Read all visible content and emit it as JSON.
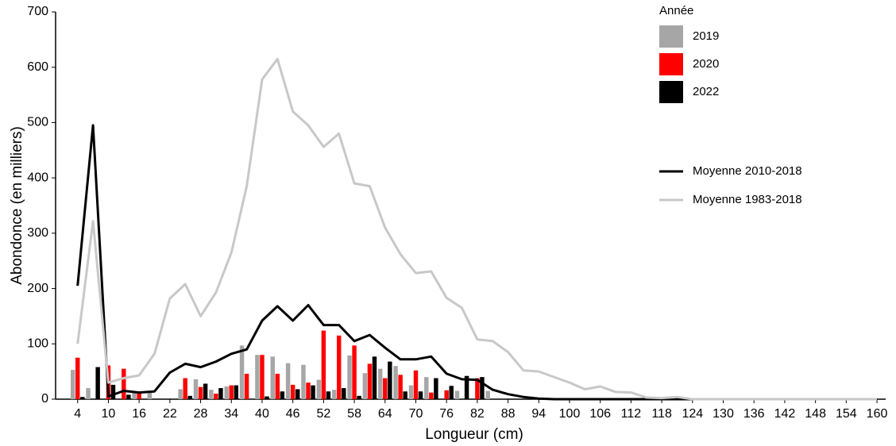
{
  "chart_data": {
    "type": "bar",
    "x_label": "Longueur (cm)",
    "y_label": "Abondonce (en milliers)",
    "legend_title": "Année",
    "x": [
      4,
      7,
      10,
      13,
      16,
      19,
      22,
      25,
      28,
      31,
      34,
      37,
      40,
      43,
      46,
      49,
      52,
      55,
      58,
      61,
      64,
      67,
      70,
      73,
      76,
      79,
      82,
      85,
      88,
      91,
      94,
      97,
      100,
      103,
      106,
      109,
      112,
      115,
      118,
      121,
      124,
      127,
      130,
      133,
      136,
      139,
      142,
      145,
      148,
      151,
      154,
      157,
      160
    ],
    "series": [
      {
        "name": "2019",
        "type": "bar",
        "color": "#a6a6a6",
        "values": [
          53,
          20,
          0,
          0,
          12,
          12,
          0,
          18,
          36,
          17,
          23,
          97,
          80,
          77,
          65,
          62,
          35,
          17,
          79,
          47,
          55,
          60,
          25,
          40,
          0,
          15,
          0,
          15,
          0,
          0,
          0,
          0,
          0,
          0,
          0,
          0,
          0,
          0,
          0,
          0,
          0,
          0,
          0,
          0,
          0,
          0,
          0,
          0,
          0,
          0,
          0,
          0,
          0
        ]
      },
      {
        "name": "2020",
        "type": "bar",
        "color": "#ff0000",
        "values": [
          75,
          0,
          61,
          55,
          12,
          0,
          0,
          38,
          22,
          10,
          25,
          46,
          80,
          46,
          26,
          30,
          124,
          115,
          97,
          64,
          38,
          44,
          52,
          12,
          16,
          0,
          38,
          0,
          0,
          0,
          0,
          0,
          0,
          0,
          0,
          0,
          0,
          0,
          0,
          0,
          0,
          0,
          0,
          0,
          0,
          0,
          0,
          0,
          0,
          0,
          0,
          0,
          0
        ]
      },
      {
        "name": "2022",
        "type": "bar",
        "color": "#000000",
        "values": [
          4,
          58,
          26,
          8,
          0,
          0,
          0,
          6,
          28,
          20,
          25,
          0,
          5,
          14,
          18,
          25,
          14,
          20,
          6,
          77,
          68,
          14,
          14,
          38,
          24,
          42,
          40,
          0,
          0,
          0,
          0,
          0,
          0,
          0,
          0,
          0,
          0,
          0,
          0,
          0,
          0,
          0,
          0,
          0,
          0,
          0,
          0,
          0,
          0,
          0,
          0,
          0,
          0
        ]
      },
      {
        "name": "Moyenne 2010-2018",
        "type": "line",
        "color": "#000000",
        "values": [
          205,
          495,
          5,
          15,
          12,
          14,
          48,
          64,
          58,
          68,
          82,
          90,
          142,
          168,
          142,
          170,
          134,
          134,
          105,
          116,
          93,
          72,
          72,
          77,
          46,
          36,
          35,
          17,
          9,
          4,
          1,
          0,
          0,
          0,
          0,
          0,
          0,
          0,
          0,
          0,
          0,
          0,
          0,
          0,
          0,
          0,
          0,
          0,
          0,
          0,
          0,
          0,
          0
        ]
      },
      {
        "name": "Moyenne 1983-2018",
        "type": "line",
        "color": "#c8c8c8",
        "values": [
          100,
          322,
          30,
          38,
          43,
          82,
          182,
          208,
          150,
          193,
          265,
          385,
          578,
          615,
          520,
          495,
          456,
          480,
          390,
          385,
          310,
          262,
          228,
          231,
          183,
          165,
          108,
          105,
          85,
          52,
          50,
          40,
          30,
          18,
          23,
          13,
          12,
          3,
          2,
          4,
          0,
          0,
          0,
          0,
          0,
          0,
          0,
          0,
          0,
          0,
          0,
          0,
          0
        ]
      }
    ],
    "xlim": [
      -0.3,
      161.7
    ],
    "ylim": [
      0,
      700
    ],
    "xticks": [
      4,
      10,
      16,
      22,
      28,
      34,
      40,
      46,
      52,
      58,
      64,
      70,
      76,
      82,
      88,
      94,
      100,
      106,
      112,
      118,
      124,
      130,
      136,
      142,
      148,
      154,
      160
    ],
    "yticks": [
      0,
      100,
      200,
      300,
      400,
      500,
      600,
      700
    ]
  }
}
